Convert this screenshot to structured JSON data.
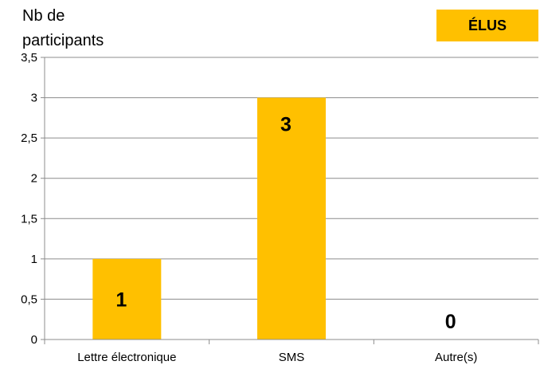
{
  "chart_data": {
    "type": "bar",
    "title": "",
    "legend_label": "ÉLUS",
    "ylabel_line1": "Nb de",
    "ylabel_line2": "participants",
    "xlabel": "",
    "categories": [
      "Lettre électronique",
      "SMS",
      "Autre(s)"
    ],
    "values": [
      1,
      3,
      0
    ],
    "ylim": [
      0,
      3.5
    ],
    "yticks": [
      "0",
      "0,5",
      "1",
      "1,5",
      "2",
      "2,5",
      "3",
      "3,5"
    ],
    "grid": true,
    "bar_color": "#FFC000",
    "legend_position": "top-right"
  }
}
